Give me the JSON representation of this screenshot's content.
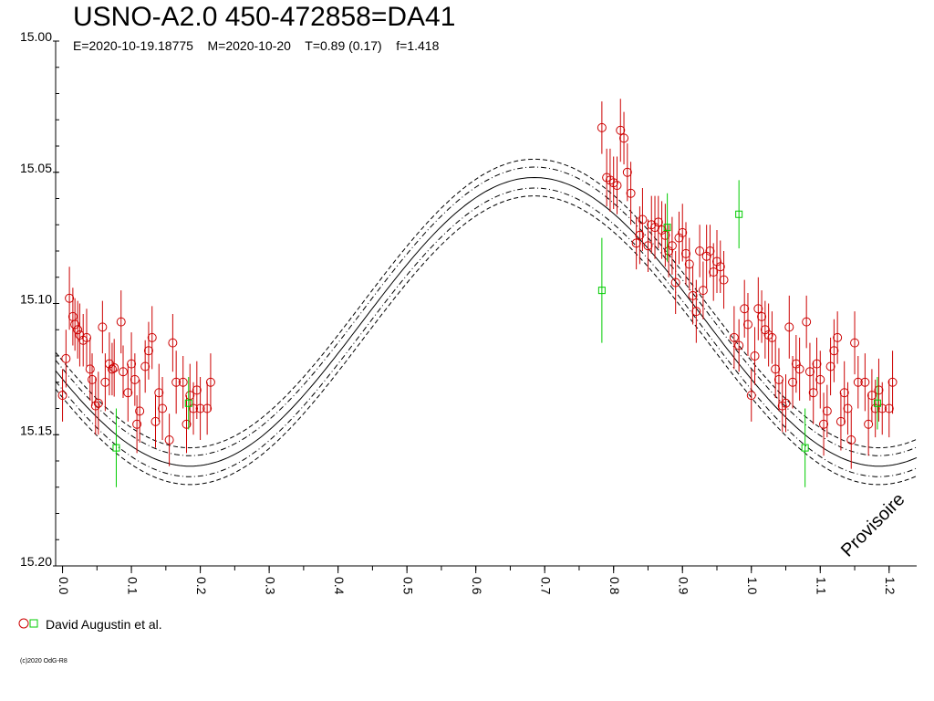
{
  "title": "USNO-A2.0 450-472858=DA41",
  "subtitle": "E=2020-10-19.18775    M=2020-10-20    T=0.89 (0.17)    f=1.418",
  "legend": {
    "label": "David Augustin et al."
  },
  "copyright": "(c)2020 OdG-R8",
  "watermark": "Provisoire",
  "colors": {
    "primary": "#cc0000",
    "secondary": "#00cc00",
    "axis": "#000000"
  },
  "chart_data": {
    "type": "scatter",
    "xlabel": "",
    "ylabel": "",
    "xlim": [
      -0.01,
      1.24
    ],
    "ylim": [
      15.0,
      15.2
    ],
    "y_inverted": true,
    "x_ticks": [
      "0.0",
      "0.1",
      "0.2",
      "0.3",
      "0.4",
      "0.5",
      "0.6",
      "0.7",
      "0.8",
      "0.9",
      "1.0",
      "1.1",
      "1.2"
    ],
    "y_ticks": [
      "15.00",
      "15.05",
      "15.10",
      "15.15",
      "15.20"
    ],
    "model": {
      "mean": 15.107,
      "amplitude": 0.055,
      "peak_phase": 0.685,
      "inner_band": 0.004,
      "outer_band": 0.007,
      "line_style": [
        "solid",
        "dash-dot",
        "dashed"
      ]
    },
    "series": [
      {
        "name": "David Augustin et al.",
        "marker": "circle",
        "color": "#cc0000",
        "points": [
          [
            0.0,
            15.135,
            0.01
          ],
          [
            0.005,
            15.121,
            0.011
          ],
          [
            0.01,
            15.098,
            0.012
          ],
          [
            0.015,
            15.105,
            0.011
          ],
          [
            0.018,
            15.108,
            0.01
          ],
          [
            0.022,
            15.11,
            0.011
          ],
          [
            0.025,
            15.112,
            0.012
          ],
          [
            0.03,
            15.114,
            0.01
          ],
          [
            0.035,
            15.113,
            0.011
          ],
          [
            0.04,
            15.125,
            0.012
          ],
          [
            0.043,
            15.129,
            0.01
          ],
          [
            0.048,
            15.139,
            0.011
          ],
          [
            0.052,
            15.138,
            0.012
          ],
          [
            0.058,
            15.109,
            0.01
          ],
          [
            0.062,
            15.13,
            0.011
          ],
          [
            0.068,
            15.123,
            0.012
          ],
          [
            0.072,
            15.125,
            0.01
          ],
          [
            0.075,
            15.1245,
            0.011
          ],
          [
            0.085,
            15.107,
            0.012
          ],
          [
            0.088,
            15.126,
            0.01
          ],
          [
            0.095,
            15.134,
            0.011
          ],
          [
            0.1,
            15.123,
            0.012
          ],
          [
            0.105,
            15.129,
            0.01
          ],
          [
            0.108,
            15.146,
            0.011
          ],
          [
            0.112,
            15.141,
            0.012
          ],
          [
            0.12,
            15.124,
            0.01
          ],
          [
            0.125,
            15.118,
            0.011
          ],
          [
            0.13,
            15.113,
            0.012
          ],
          [
            0.135,
            15.145,
            0.01
          ],
          [
            0.14,
            15.134,
            0.011
          ],
          [
            0.145,
            15.14,
            0.012
          ],
          [
            0.155,
            15.152,
            0.01
          ],
          [
            0.16,
            15.115,
            0.011
          ],
          [
            0.165,
            15.13,
            0.012
          ],
          [
            0.175,
            15.13,
            0.01
          ],
          [
            0.18,
            15.146,
            0.011
          ],
          [
            0.185,
            15.135,
            0.012
          ],
          [
            0.19,
            15.14,
            0.01
          ],
          [
            0.195,
            15.133,
            0.011
          ],
          [
            0.2,
            15.14,
            0.012
          ],
          [
            0.21,
            15.14,
            0.01
          ],
          [
            0.215,
            15.13,
            0.011
          ],
          [
            0.783,
            15.033,
            0.01
          ],
          [
            0.79,
            15.052,
            0.011
          ],
          [
            0.795,
            15.053,
            0.012
          ],
          [
            0.8,
            15.054,
            0.01
          ],
          [
            0.805,
            15.055,
            0.011
          ],
          [
            0.81,
            15.034,
            0.012
          ],
          [
            0.815,
            15.037,
            0.01
          ],
          [
            0.82,
            15.05,
            0.011
          ],
          [
            0.825,
            15.058,
            0.012
          ],
          [
            0.833,
            15.077,
            0.01
          ],
          [
            0.838,
            15.074,
            0.011
          ],
          [
            0.842,
            15.068,
            0.012
          ],
          [
            0.85,
            15.078,
            0.01
          ],
          [
            0.855,
            15.07,
            0.011
          ],
          [
            0.86,
            15.071,
            0.012
          ],
          [
            0.865,
            15.069,
            0.01
          ],
          [
            0.87,
            15.072,
            0.011
          ],
          [
            0.875,
            15.074,
            0.012
          ],
          [
            0.88,
            15.08,
            0.01
          ],
          [
            0.885,
            15.078,
            0.011
          ],
          [
            0.89,
            15.092,
            0.012
          ],
          [
            0.895,
            15.075,
            0.01
          ],
          [
            0.9,
            15.073,
            0.011
          ],
          [
            0.905,
            15.081,
            0.012
          ],
          [
            0.91,
            15.085,
            0.01
          ],
          [
            0.915,
            15.097,
            0.011
          ],
          [
            0.92,
            15.103,
            0.012
          ],
          [
            0.925,
            15.08,
            0.01
          ],
          [
            0.93,
            15.095,
            0.011
          ],
          [
            0.935,
            15.082,
            0.012
          ],
          [
            0.94,
            15.08,
            0.01
          ],
          [
            0.945,
            15.088,
            0.011
          ],
          [
            0.95,
            15.084,
            0.012
          ],
          [
            0.955,
            15.086,
            0.01
          ],
          [
            0.96,
            15.091,
            0.011
          ],
          [
            0.975,
            15.113,
            0.012
          ],
          [
            0.982,
            15.116,
            0.01
          ],
          [
            0.99,
            15.102,
            0.011
          ],
          [
            0.995,
            15.108,
            0.012
          ],
          [
            1.0,
            15.135,
            0.01
          ],
          [
            1.005,
            15.12,
            0.011
          ],
          [
            1.01,
            15.102,
            0.012
          ],
          [
            1.015,
            15.105,
            0.01
          ],
          [
            1.02,
            15.11,
            0.011
          ],
          [
            1.025,
            15.112,
            0.012
          ],
          [
            1.03,
            15.113,
            0.01
          ],
          [
            1.035,
            15.125,
            0.011
          ],
          [
            1.04,
            15.129,
            0.012
          ],
          [
            1.045,
            15.139,
            0.01
          ],
          [
            1.05,
            15.138,
            0.011
          ],
          [
            1.055,
            15.109,
            0.012
          ],
          [
            1.06,
            15.13,
            0.01
          ],
          [
            1.065,
            15.123,
            0.011
          ],
          [
            1.07,
            15.125,
            0.012
          ],
          [
            1.08,
            15.107,
            0.01
          ],
          [
            1.085,
            15.126,
            0.011
          ],
          [
            1.09,
            15.134,
            0.012
          ],
          [
            1.095,
            15.123,
            0.01
          ],
          [
            1.1,
            15.129,
            0.011
          ],
          [
            1.105,
            15.146,
            0.012
          ],
          [
            1.11,
            15.141,
            0.01
          ],
          [
            1.115,
            15.124,
            0.011
          ],
          [
            1.12,
            15.118,
            0.012
          ],
          [
            1.125,
            15.113,
            0.01
          ],
          [
            1.13,
            15.145,
            0.011
          ],
          [
            1.135,
            15.134,
            0.012
          ],
          [
            1.14,
            15.14,
            0.01
          ],
          [
            1.145,
            15.152,
            0.011
          ],
          [
            1.15,
            15.115,
            0.012
          ],
          [
            1.155,
            15.13,
            0.01
          ],
          [
            1.165,
            15.13,
            0.011
          ],
          [
            1.17,
            15.146,
            0.012
          ],
          [
            1.175,
            15.135,
            0.01
          ],
          [
            1.18,
            15.14,
            0.011
          ],
          [
            1.185,
            15.133,
            0.012
          ],
          [
            1.19,
            15.14,
            0.01
          ],
          [
            1.2,
            15.14,
            0.011
          ],
          [
            1.205,
            15.13,
            0.012
          ]
        ]
      },
      {
        "name": "David Augustin et al.",
        "marker": "square",
        "color": "#00cc00",
        "points": [
          [
            0.078,
            15.155,
            0.015
          ],
          [
            0.183,
            15.138,
            0.01
          ],
          [
            0.783,
            15.095,
            0.02
          ],
          [
            0.878,
            15.071,
            0.013
          ],
          [
            0.982,
            15.066,
            0.013
          ],
          [
            1.078,
            15.155,
            0.015
          ],
          [
            1.183,
            15.138,
            0.01
          ]
        ]
      }
    ]
  }
}
